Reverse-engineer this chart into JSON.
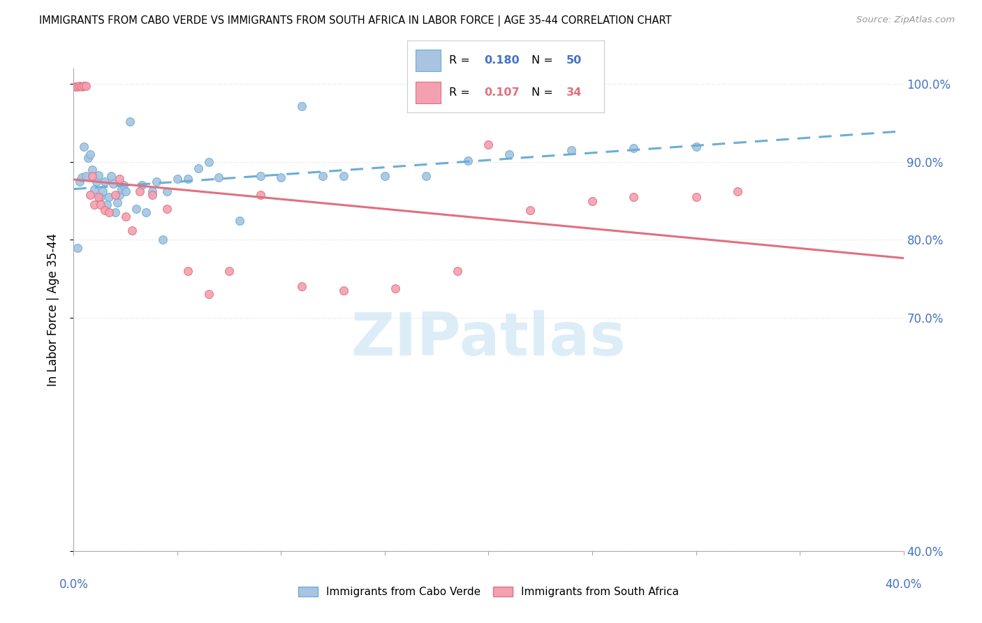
{
  "title": "IMMIGRANTS FROM CABO VERDE VS IMMIGRANTS FROM SOUTH AFRICA IN LABOR FORCE | AGE 35-44 CORRELATION CHART",
  "source": "Source: ZipAtlas.com",
  "y_label": "In Labor Force | Age 35-44",
  "cabo_verde_R": "0.180",
  "cabo_verde_N": "50",
  "south_africa_R": "0.107",
  "south_africa_N": "34",
  "cabo_verde_color": "#a8c4e0",
  "cabo_verde_edge_color": "#6baed6",
  "south_africa_color": "#f4a0b0",
  "south_africa_edge_color": "#e07080",
  "cabo_verde_line_color": "#6baed6",
  "south_africa_line_color": "#e07080",
  "watermark_text": "ZIPatlas",
  "watermark_color": "#cce4f5",
  "xlim": [
    0.0,
    0.4
  ],
  "ylim": [
    0.4,
    1.02
  ],
  "yticks": [
    0.4,
    0.7,
    0.8,
    0.9,
    1.0
  ],
  "ytick_labels": [
    "40.0%",
    "70.0%",
    "80.0%",
    "90.0%",
    "100.0%"
  ],
  "yaxis_color": "#4472c4",
  "xaxis_color": "#4472c4",
  "grid_color": "#dddddd",
  "cabo_verde_scatter_x": [
    0.002,
    0.003,
    0.004,
    0.005,
    0.006,
    0.007,
    0.008,
    0.009,
    0.01,
    0.011,
    0.012,
    0.013,
    0.014,
    0.015,
    0.016,
    0.017,
    0.018,
    0.019,
    0.02,
    0.021,
    0.022,
    0.023,
    0.024,
    0.025,
    0.027,
    0.03,
    0.033,
    0.035,
    0.038,
    0.04,
    0.043,
    0.045,
    0.05,
    0.055,
    0.06,
    0.065,
    0.07,
    0.08,
    0.09,
    0.1,
    0.11,
    0.12,
    0.13,
    0.15,
    0.17,
    0.19,
    0.21,
    0.24,
    0.27,
    0.3
  ],
  "cabo_verde_scatter_y": [
    0.79,
    0.875,
    0.88,
    0.92,
    0.882,
    0.905,
    0.91,
    0.89,
    0.865,
    0.875,
    0.883,
    0.855,
    0.862,
    0.875,
    0.845,
    0.855,
    0.882,
    0.872,
    0.835,
    0.848,
    0.858,
    0.865,
    0.87,
    0.862,
    0.952,
    0.84,
    0.87,
    0.835,
    0.862,
    0.875,
    0.8,
    0.862,
    0.878,
    0.878,
    0.892,
    0.9,
    0.88,
    0.825,
    0.882,
    0.88,
    0.972,
    0.882,
    0.882,
    0.882,
    0.882,
    0.902,
    0.91,
    0.915,
    0.918,
    0.92
  ],
  "south_africa_scatter_x": [
    0.001,
    0.002,
    0.003,
    0.004,
    0.005,
    0.006,
    0.008,
    0.009,
    0.01,
    0.012,
    0.013,
    0.015,
    0.017,
    0.02,
    0.022,
    0.025,
    0.028,
    0.032,
    0.038,
    0.045,
    0.055,
    0.065,
    0.075,
    0.09,
    0.11,
    0.13,
    0.155,
    0.185,
    0.2,
    0.22,
    0.25,
    0.27,
    0.3,
    0.32
  ],
  "south_africa_scatter_y": [
    0.997,
    0.997,
    0.998,
    0.997,
    0.998,
    0.998,
    0.858,
    0.882,
    0.845,
    0.855,
    0.845,
    0.838,
    0.835,
    0.858,
    0.878,
    0.83,
    0.812,
    0.862,
    0.858,
    0.84,
    0.76,
    0.73,
    0.76,
    0.858,
    0.74,
    0.735,
    0.738,
    0.76,
    0.922,
    0.838,
    0.85,
    0.855,
    0.855,
    0.862
  ]
}
